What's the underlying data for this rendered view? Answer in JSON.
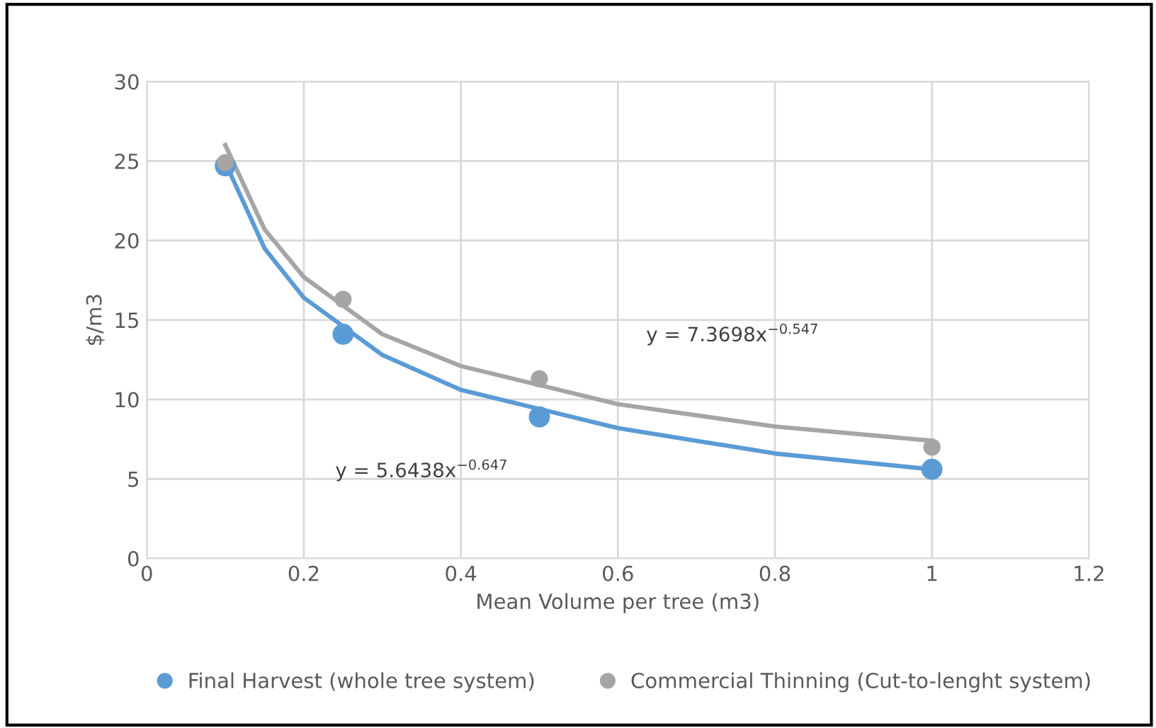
{
  "chart_data": {
    "type": "scatter",
    "xlabel": "Mean Volume per tree (m3)",
    "ylabel": "$/m3",
    "x": [
      0.1,
      0.25,
      0.5,
      1
    ],
    "series": [
      {
        "name": "Final Harvest (whole tree system)",
        "color": "#5b9bd5",
        "values": [
          24.7,
          14.1,
          8.9,
          5.6
        ]
      },
      {
        "name": "Commercial Thinning (Cut-to-lenght system)",
        "color": "#a5a5a5",
        "values": [
          24.9,
          16.3,
          11.3,
          7.0
        ]
      },
      {
        "color": "#5b9bd5",
        "type": "line",
        "marker": "none",
        "x": [
          0.1,
          0.15,
          0.2,
          0.3,
          0.4,
          0.6,
          0.8,
          1
        ],
        "values": [
          24.9,
          19.5,
          16.4,
          12.8,
          10.6,
          8.2,
          6.6,
          5.6
        ]
      },
      {
        "color": "#a5a5a5",
        "type": "line",
        "marker": "none",
        "x": [
          0.1,
          0.15,
          0.2,
          0.3,
          0.4,
          0.6,
          0.8,
          1
        ],
        "values": [
          26.0,
          20.7,
          17.7,
          14.1,
          12.1,
          9.7,
          8.3,
          7.4
        ]
      }
    ],
    "marker": "circle",
    "line_style": "solid",
    "annotations": [
      "y = 7.3698x$^{−0.547}$",
      "y = 5.6438x$^{−0.647}$"
    ],
    "xlim": [
      0,
      1.2
    ],
    "xticks": [
      0,
      0.2,
      0.4,
      0.6,
      0.8,
      1,
      1.2
    ],
    "ylim": [
      0,
      30
    ],
    "yticks": [
      0,
      5,
      10,
      15,
      20,
      25,
      30
    ],
    "grid": true,
    "legend": "bottom"
  }
}
